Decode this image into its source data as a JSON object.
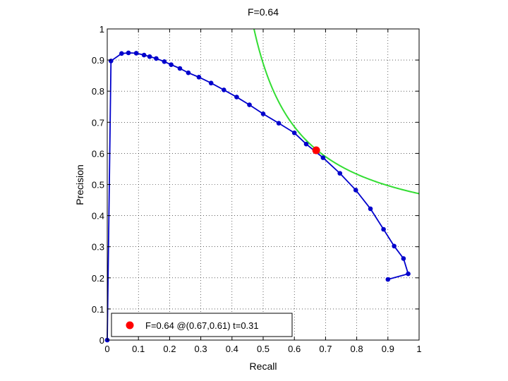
{
  "chart_data": {
    "type": "line",
    "title": "F=0.64",
    "xlabel": "Recall",
    "ylabel": "Precision",
    "xlim": [
      0,
      1
    ],
    "ylim": [
      0,
      1
    ],
    "xticks": [
      "0",
      "0.1",
      "0.2",
      "0.3",
      "0.4",
      "0.5",
      "0.6",
      "0.7",
      "0.8",
      "0.9",
      "1"
    ],
    "yticks": [
      "0",
      "0.1",
      "0.2",
      "0.3",
      "0.4",
      "0.5",
      "0.6",
      "0.7",
      "0.8",
      "0.9",
      "1"
    ],
    "grid": true,
    "pr_curve": {
      "color": "#0000cc",
      "x": [
        0.0,
        0.012,
        0.046,
        0.068,
        0.093,
        0.118,
        0.136,
        0.157,
        0.183,
        0.205,
        0.233,
        0.26,
        0.294,
        0.333,
        0.374,
        0.415,
        0.456,
        0.5,
        0.55,
        0.6,
        0.638,
        0.692,
        0.746,
        0.797,
        0.844,
        0.886,
        0.92,
        0.95,
        0.965,
        0.9
      ],
      "y": [
        0.0,
        0.897,
        0.921,
        0.923,
        0.922,
        0.916,
        0.911,
        0.905,
        0.895,
        0.885,
        0.873,
        0.859,
        0.845,
        0.826,
        0.804,
        0.781,
        0.756,
        0.727,
        0.697,
        0.666,
        0.63,
        0.586,
        0.536,
        0.482,
        0.422,
        0.356,
        0.302,
        0.262,
        0.213,
        0.195
      ]
    },
    "iso_f_curve": {
      "color": "#33dd33",
      "f_value": 0.64
    },
    "best_point": {
      "color": "#ff0000",
      "recall": 0.67,
      "precision": 0.61
    },
    "legend": {
      "placement": "bottom-left",
      "entries": [
        "F=0.64 @(0.67,0.61) t=0.31"
      ]
    }
  }
}
